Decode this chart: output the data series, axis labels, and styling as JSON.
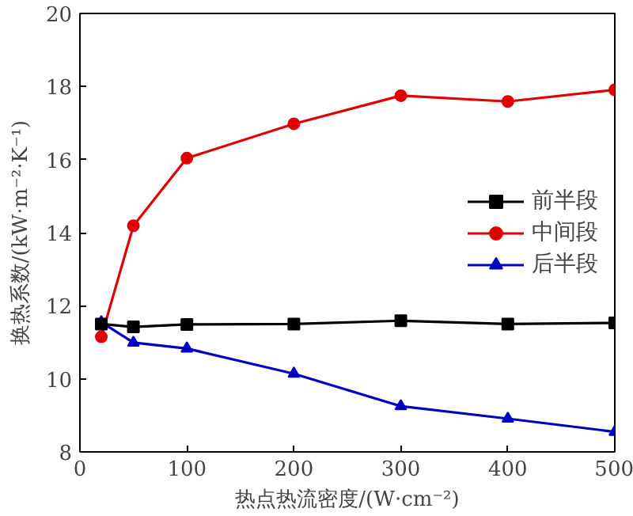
{
  "chart_data": {
    "type": "line",
    "xlabel": "热点热流密度/(W·cm⁻²)",
    "ylabel": "换热系数/(kW·m⁻²·K⁻¹)",
    "x": [
      20,
      50,
      100,
      200,
      300,
      400,
      500
    ],
    "series": [
      {
        "name": "前半段",
        "color": "#000000",
        "marker": "square",
        "values": [
          11.5,
          11.42,
          11.49,
          11.5,
          11.59,
          11.5,
          11.53
        ]
      },
      {
        "name": "中间段",
        "color": "#e00000",
        "marker": "circle",
        "values": [
          11.15,
          14.19,
          16.04,
          16.98,
          17.75,
          17.59,
          17.91
        ]
      },
      {
        "name": "后半段",
        "color": "#0000c0",
        "marker": "triangle",
        "values": [
          11.55,
          10.99,
          10.83,
          10.14,
          9.25,
          8.91,
          8.55
        ]
      }
    ],
    "xlim": [
      0,
      500
    ],
    "xticks": [
      0,
      100,
      200,
      300,
      400,
      500
    ],
    "ylim": [
      8,
      20
    ],
    "yticks": [
      8,
      10,
      12,
      14,
      16,
      18,
      20
    ],
    "grid": false,
    "legend": "right",
    "line_style": "solid"
  }
}
